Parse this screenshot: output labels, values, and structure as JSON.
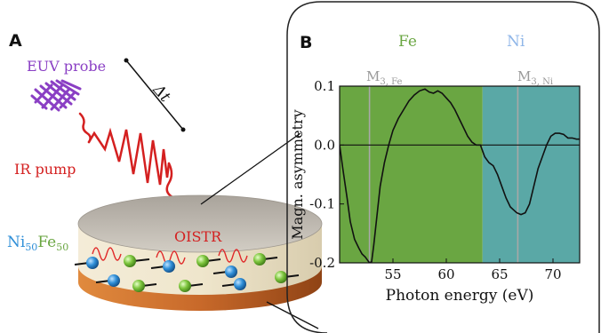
{
  "panel_a": {
    "letter": "A",
    "euv_label": "EUV probe",
    "ir_label": "IR pump",
    "delay_label": "Δt",
    "oistr_label": "OISTR",
    "alloy": {
      "el1": "Ni",
      "sub1": "50",
      "el2": "Fe",
      "sub2": "50"
    }
  },
  "panel_b": {
    "letter": "B",
    "region_fe_label": "Fe",
    "region_ni_label": "Ni",
    "m3fe": {
      "main": "M",
      "sub": "3, Fe"
    },
    "m3ni": {
      "main": "M",
      "sub": "3, Ni"
    }
  },
  "colors": {
    "fe_region": "#6aa642",
    "ni_region": "#5aa8a6",
    "euv": "#8a3fc4",
    "ir": "#d42020",
    "ni_atom": "#2f8fd8",
    "fe_atom": "#7cc43c",
    "copper": "#c8692a"
  },
  "chart_data": {
    "type": "line",
    "title": "",
    "xlabel": "Photon energy (eV)",
    "ylabel": "Magn. asymmetry",
    "xlim": [
      50,
      72.5
    ],
    "ylim": [
      -0.2,
      0.1
    ],
    "xticks": [
      55,
      60,
      65,
      70
    ],
    "yticks": [
      0.1,
      0.0,
      -0.1,
      -0.2
    ],
    "ytick_labels": [
      "0.1",
      "0.0",
      "-0.1",
      "-0.2"
    ],
    "regions": [
      {
        "name": "Fe",
        "x_start": 50,
        "x_end": 63.4
      },
      {
        "name": "Ni",
        "x_start": 63.4,
        "x_end": 72.5
      }
    ],
    "vlines": [
      52.8,
      66.7
    ],
    "hline": 0.0,
    "series": [
      {
        "x": [
          50.0,
          50.3,
          50.7,
          51.0,
          51.4,
          51.8,
          52.1,
          52.4,
          52.6,
          52.8,
          53.0,
          53.2,
          53.5,
          53.8,
          54.2,
          54.6,
          55.0,
          55.5,
          56.0,
          56.5,
          57.0,
          57.5,
          58.0,
          58.4,
          58.8,
          59.2,
          59.6,
          60.0,
          60.4,
          60.8,
          61.2,
          61.6,
          62.0,
          62.4,
          62.8,
          63.2,
          63.6,
          64.0,
          64.4,
          64.8,
          65.2,
          65.6,
          66.0,
          66.3,
          66.6,
          67.0,
          67.4,
          67.8,
          68.2,
          68.6,
          69.0,
          69.4,
          69.8,
          70.2,
          70.6,
          71.0,
          71.4,
          71.8,
          72.2,
          72.5
        ],
        "y": [
          0.0,
          -0.04,
          -0.09,
          -0.13,
          -0.16,
          -0.175,
          -0.185,
          -0.19,
          -0.195,
          -0.2,
          -0.198,
          -0.17,
          -0.12,
          -0.07,
          -0.03,
          0.0,
          0.025,
          0.045,
          0.06,
          0.075,
          0.085,
          0.092,
          0.095,
          0.09,
          0.088,
          0.092,
          0.088,
          0.08,
          0.072,
          0.06,
          0.045,
          0.03,
          0.015,
          0.005,
          0.0,
          0.0,
          -0.02,
          -0.03,
          -0.035,
          -0.05,
          -0.07,
          -0.09,
          -0.105,
          -0.11,
          -0.115,
          -0.118,
          -0.115,
          -0.1,
          -0.07,
          -0.04,
          -0.02,
          0.0,
          0.015,
          0.02,
          0.02,
          0.018,
          0.012,
          0.012,
          0.01,
          0.01
        ]
      }
    ]
  }
}
